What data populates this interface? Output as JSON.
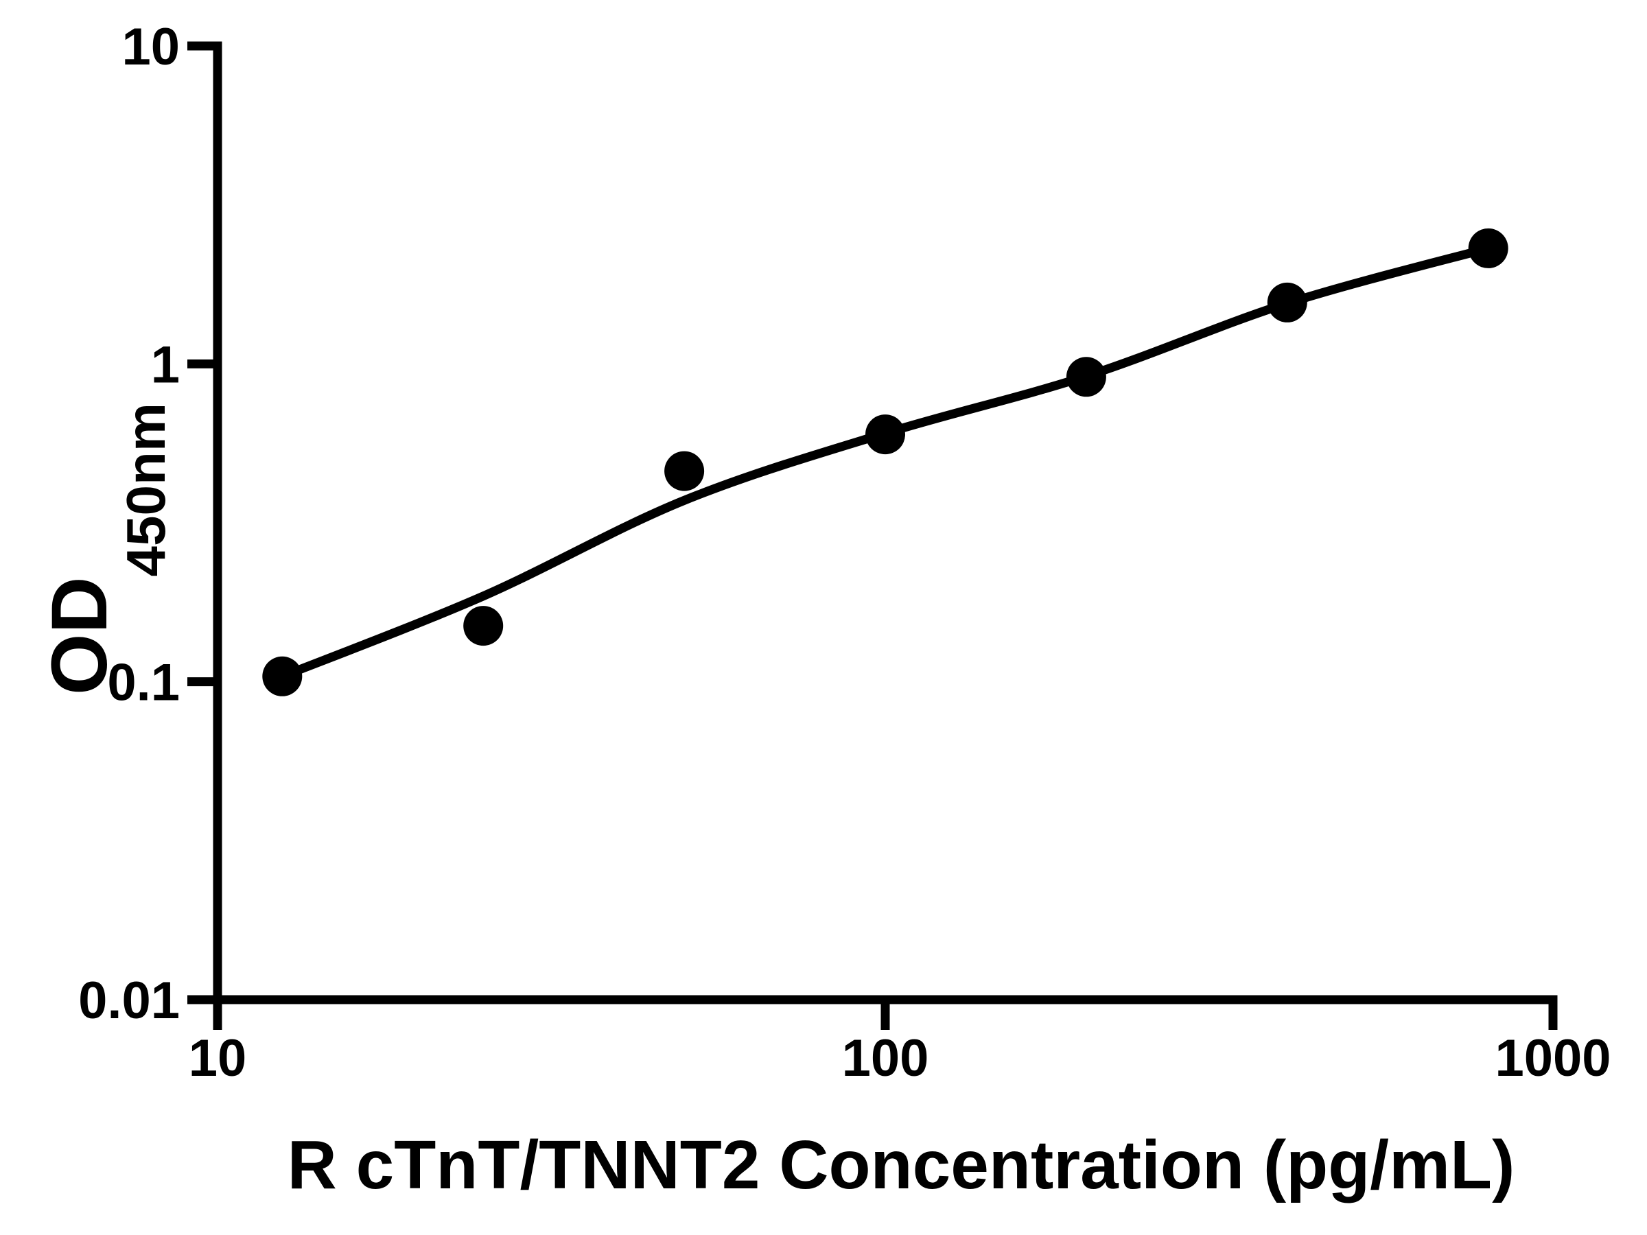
{
  "chart_data": {
    "type": "scatter",
    "title": "",
    "xlabel": "R cTnT/TNNT2 Concentration (pg/mL)",
    "ylabel": "OD450nm",
    "ylabel_main": "OD",
    "ylabel_sub": "450nm",
    "x_scale": "log10",
    "y_scale": "log10",
    "xlim": [
      10,
      1000
    ],
    "ylim": [
      0.01,
      10
    ],
    "x_ticks": {
      "values": [
        10,
        100,
        1000
      ],
      "labels": [
        "10",
        "100",
        "1000"
      ]
    },
    "y_ticks": {
      "values": [
        10,
        1,
        0.1,
        0.01
      ],
      "labels": [
        "10",
        "1",
        "0.1",
        "0.01"
      ]
    },
    "grid": false,
    "legend": "none",
    "ink_color": "#000000",
    "background_color": "#ffffff",
    "marker": {
      "shape": "filled-circle",
      "color": "#000000"
    },
    "series": [
      {
        "name": "standard-curve-points",
        "x": [
          12.5,
          25,
          50,
          100,
          200,
          400,
          800
        ],
        "y": [
          0.104,
          0.15,
          0.46,
          0.6,
          0.91,
          1.56,
          2.31
        ]
      }
    ],
    "fitted_curve": {
      "name": "four-parameter-fit-line",
      "x": [
        12.5,
        25,
        50,
        100,
        200,
        400,
        800
      ],
      "y": [
        0.104,
        0.186,
        0.372,
        0.605,
        0.915,
        1.55,
        2.31
      ]
    }
  }
}
